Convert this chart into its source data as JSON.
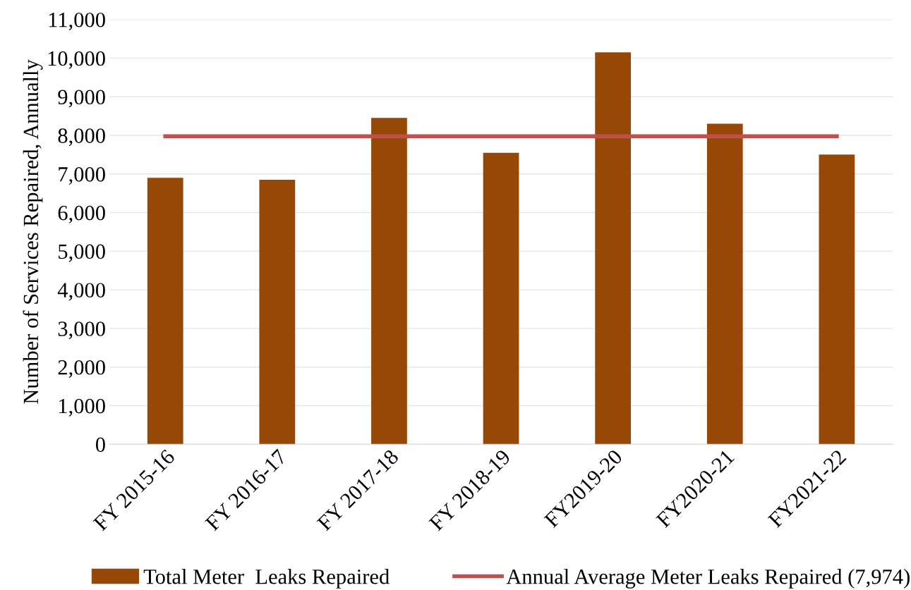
{
  "chart_data": {
    "type": "bar",
    "ylabel": "Number of Services Repaired, Annually",
    "categories": [
      "FY 2015-16",
      "FY 2016-17",
      "FY 2017-18",
      "FY 2018-19",
      "FY2019-20",
      "FY2020-21",
      "FY2021-22"
    ],
    "series": [
      {
        "name": "Total Meter  Leaks Repaired",
        "color": "#974706",
        "values": [
          6900,
          6850,
          8450,
          7550,
          10150,
          8300,
          7500
        ]
      },
      {
        "name": "Annual Average Meter Leaks Repaired (7,974)",
        "type": "line",
        "color": "#c0504d",
        "values": [
          7974,
          7974,
          7974,
          7974,
          7974,
          7974,
          7974
        ]
      }
    ],
    "ylim": [
      0,
      11000
    ],
    "yticks": [
      {
        "value": 0,
        "label": "0"
      },
      {
        "value": 1000,
        "label": "1,000"
      },
      {
        "value": 2000,
        "label": "2,000"
      },
      {
        "value": 3000,
        "label": "3,000"
      },
      {
        "value": 4000,
        "label": "4,000"
      },
      {
        "value": 5000,
        "label": "5,000"
      },
      {
        "value": 6000,
        "label": "6,000"
      },
      {
        "value": 7000,
        "label": "7,000"
      },
      {
        "value": 8000,
        "label": "8,000"
      },
      {
        "value": 9000,
        "label": "9,000"
      },
      {
        "value": 10000,
        "label": "10,000"
      },
      {
        "value": 11000,
        "label": "11,000"
      }
    ],
    "grid": "y",
    "legend": "bottom",
    "marker": "none",
    "line_style": "solid"
  }
}
